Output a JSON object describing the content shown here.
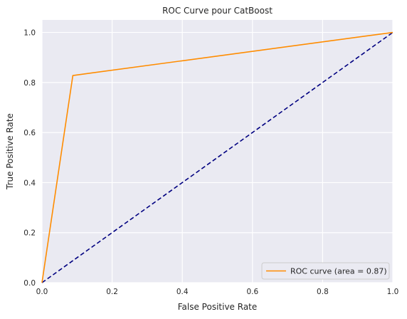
{
  "chart_data": {
    "type": "line",
    "title": "ROC Curve pour CatBoost",
    "xlabel": "False Positive Rate",
    "ylabel": "True Positive Rate",
    "xlim": [
      0.0,
      1.0
    ],
    "ylim": [
      0.0,
      1.05
    ],
    "x_ticks": [
      "0.0",
      "0.2",
      "0.4",
      "0.6",
      "0.8",
      "1.0"
    ],
    "y_ticks": [
      "0.0",
      "0.2",
      "0.4",
      "0.6",
      "0.8",
      "1.0"
    ],
    "grid": true,
    "legend_position": "lower-right",
    "series": [
      {
        "name": "ROC curve (area = 0.87)",
        "color": "#ff8c00",
        "style": "solid",
        "x": [
          0.0,
          0.088,
          1.0
        ],
        "y": [
          0.0,
          0.828,
          1.0
        ]
      },
      {
        "color": "#000080",
        "style": "dashed",
        "x": [
          0.0,
          1.0
        ],
        "y": [
          0.0,
          1.0
        ]
      }
    ],
    "colors": {
      "plot_background": "#eaeaf2",
      "grid": "#ffffff",
      "text": "#262626"
    }
  }
}
